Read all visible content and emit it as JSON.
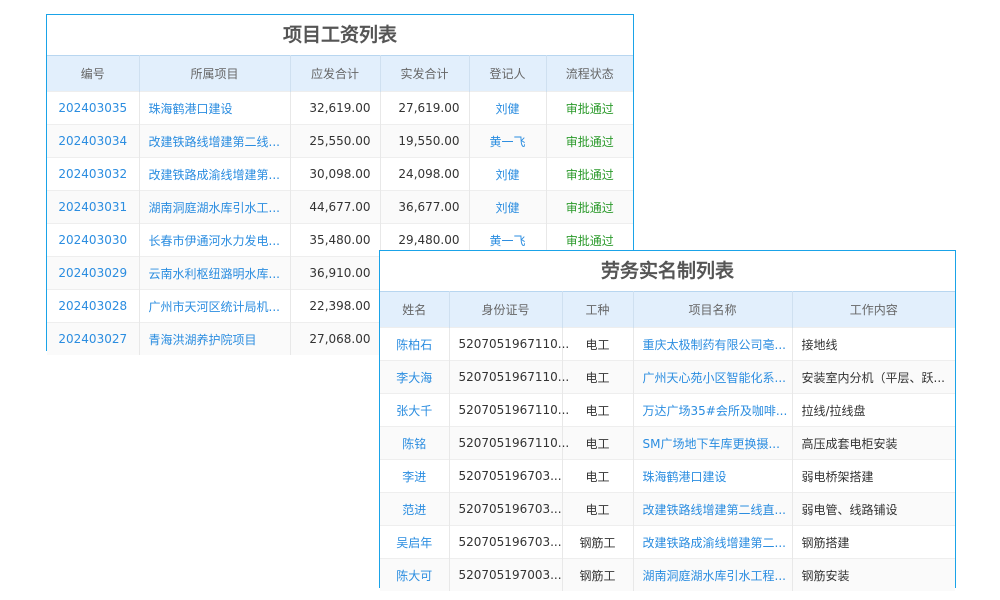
{
  "salary": {
    "title": "项目工资列表",
    "columns": [
      "编号",
      "所属项目",
      "应发合计",
      "实发合计",
      "登记人",
      "流程状态"
    ],
    "rows": [
      [
        "202403035",
        "珠海鹤港口建设",
        "32,619.00",
        "27,619.00",
        "刘健",
        "审批通过"
      ],
      [
        "202403034",
        "改建铁路线增建第二线...",
        "25,550.00",
        "19,550.00",
        "黄一飞",
        "审批通过"
      ],
      [
        "202403032",
        "改建铁路成渝线增建第...",
        "30,098.00",
        "24,098.00",
        "刘健",
        "审批通过"
      ],
      [
        "202403031",
        "湖南洞庭湖水库引水工...",
        "44,677.00",
        "36,677.00",
        "刘健",
        "审批通过"
      ],
      [
        "202403030",
        "长春市伊通河水力发电...",
        "35,480.00",
        "29,480.00",
        "黄一飞",
        "审批通过"
      ],
      [
        "202403029",
        "云南水利枢纽潞明水库...",
        "36,910.00",
        "",
        "",
        ""
      ],
      [
        "202403028",
        "广州市天河区统计局机...",
        "22,398.00",
        "",
        "",
        ""
      ],
      [
        "202403027",
        "青海洪湖养护院项目",
        "27,068.00",
        "",
        "",
        ""
      ]
    ]
  },
  "labor": {
    "title": "劳务实名制列表",
    "columns": [
      "姓名",
      "身份证号",
      "工种",
      "项目名称",
      "工作内容"
    ],
    "rows": [
      [
        "陈柏石",
        "5207051967110...",
        "电工",
        "重庆太极制药有限公司亳...",
        "接地线"
      ],
      [
        "李大海",
        "5207051967110...",
        "电工",
        "广州天心苑小区智能化系...",
        "安装室内分机（平层、跃..."
      ],
      [
        "张大千",
        "5207051967110...",
        "电工",
        "万达广场35#会所及咖啡...",
        "拉线/拉线盘"
      ],
      [
        "陈铭",
        "5207051967110...",
        "电工",
        "SM广场地下车库更换摄...",
        "高压成套电柜安装"
      ],
      [
        "李进",
        "520705196703...",
        "电工",
        "珠海鹤港口建设",
        "弱电桥架搭建"
      ],
      [
        "范进",
        "520705196703...",
        "电工",
        "改建铁路线增建第二线直...",
        "弱电管、线路铺设"
      ],
      [
        "吴启年",
        "520705196703...",
        "钢筋工",
        "改建铁路成渝线增建第二...",
        "钢筋搭建"
      ],
      [
        "陈大可",
        "520705197003...",
        "钢筋工",
        "湖南洞庭湖水库引水工程...",
        "钢筋安装"
      ]
    ]
  },
  "colors": {
    "border": "#1aa3e8",
    "header_bg": "#e2effc",
    "link": "#2b8de0",
    "status_ok": "#2b9a2b"
  }
}
